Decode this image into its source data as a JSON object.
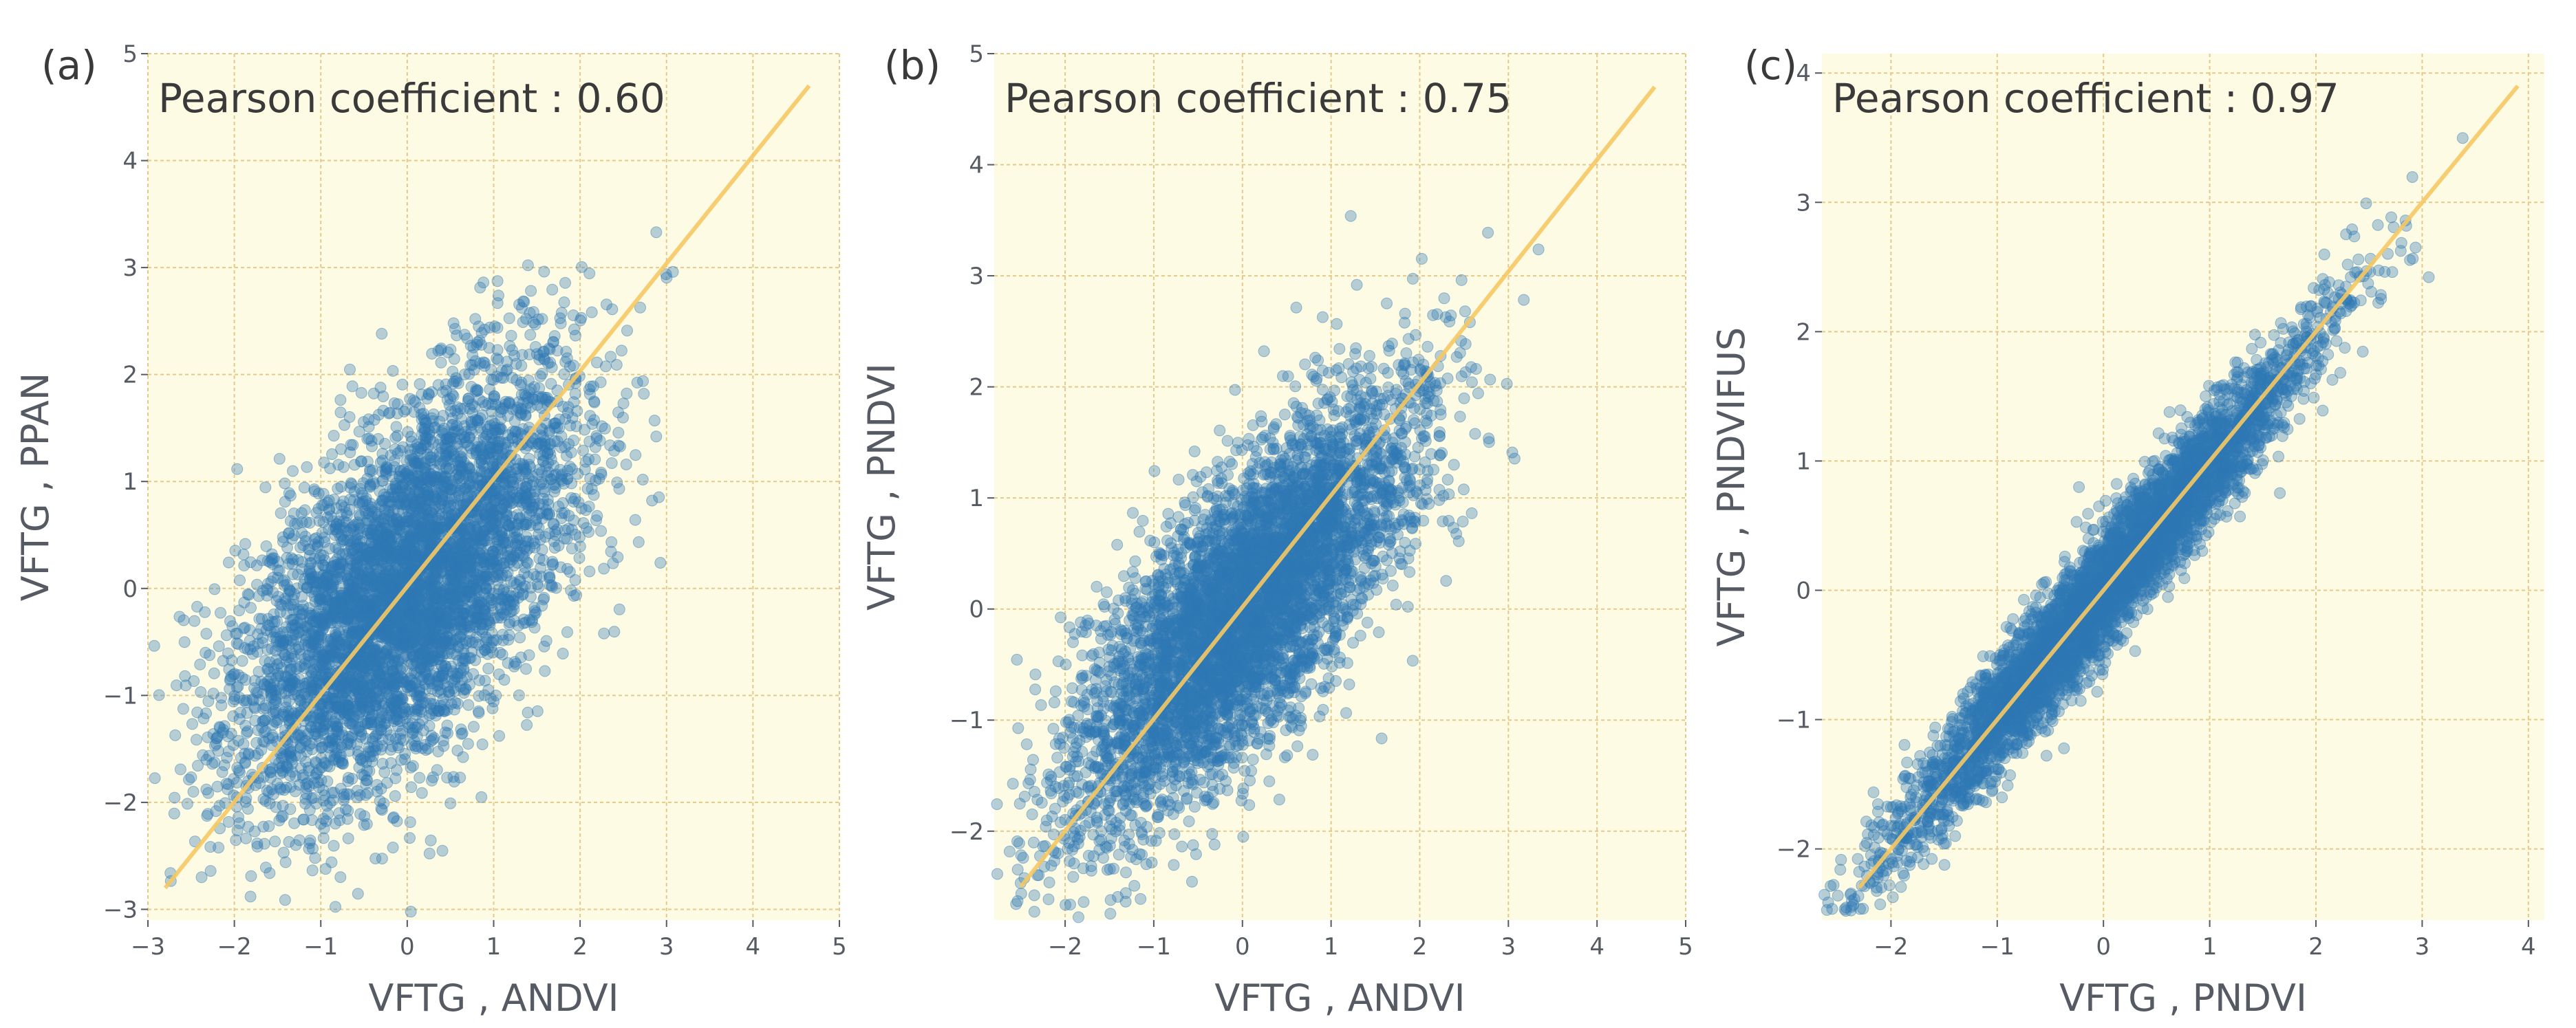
{
  "figure": {
    "colors": {
      "background": "#fdfbe4",
      "grid": "#e6c98a",
      "points": "#2e78b4",
      "fit_line": "#f5c863",
      "text": "#3a3a3a",
      "tick_text": "#555a63"
    }
  },
  "chart_data": [
    {
      "type": "scatter",
      "panel_label": "(a)",
      "title": "Pearson coefficient : 0.60",
      "pearson": 0.6,
      "xlabel": "VFTG , ANDVI",
      "ylabel": "VFTG , PPAN",
      "xlim": [
        -3.0,
        5.0
      ],
      "ylim": [
        -3.1,
        5.0
      ],
      "xticks": [
        -3,
        -2,
        -1,
        0,
        1,
        2,
        3,
        4,
        5
      ],
      "yticks": [
        -3,
        -2,
        -1,
        0,
        1,
        2,
        3,
        4,
        5
      ],
      "grid": true,
      "n_points": 5200,
      "point_cloud": {
        "x_mean": 0.0,
        "x_sd": 0.98,
        "y_mean": 0.0,
        "y_sd": 0.98,
        "correlation": 0.6
      },
      "fit_line": {
        "x": [
          -2.8,
          4.65
        ],
        "y": [
          -2.8,
          4.7
        ]
      }
    },
    {
      "type": "scatter",
      "panel_label": "(b)",
      "title": "Pearson coefficient : 0.75",
      "pearson": 0.75,
      "xlabel": "VFTG , ANDVI",
      "ylabel": "VFTG , PNDVI",
      "xlim": [
        -2.8,
        5.0
      ],
      "ylim": [
        -2.8,
        5.0
      ],
      "xticks": [
        -2,
        -1,
        0,
        1,
        2,
        3,
        4,
        5
      ],
      "yticks": [
        -2,
        -1,
        0,
        1,
        2,
        3,
        4,
        5
      ],
      "grid": true,
      "n_points": 5200,
      "point_cloud": {
        "x_mean": 0.0,
        "x_sd": 0.95,
        "y_mean": 0.0,
        "y_sd": 0.95,
        "correlation": 0.75
      },
      "fit_line": {
        "x": [
          -2.5,
          4.65
        ],
        "y": [
          -2.5,
          4.7
        ]
      }
    },
    {
      "type": "scatter",
      "panel_label": "(c)",
      "title": "Pearson coefficient : 0.97",
      "pearson": 0.97,
      "xlabel": "VFTG , PNDVI",
      "ylabel": "VFTG , PNDVIFUS",
      "xlim": [
        -2.65,
        4.15
      ],
      "ylim": [
        -2.55,
        4.15
      ],
      "xticks": [
        -2,
        -1,
        0,
        1,
        2,
        3,
        4
      ],
      "yticks": [
        -2,
        -1,
        0,
        1,
        2,
        3,
        4
      ],
      "grid": true,
      "n_points": 5200,
      "point_cloud": {
        "x_mean": 0.0,
        "x_sd": 0.95,
        "y_mean": 0.0,
        "y_sd": 0.95,
        "correlation": 0.97
      },
      "fit_line": {
        "x": [
          -2.3,
          3.9
        ],
        "y": [
          -2.3,
          3.9
        ]
      }
    }
  ]
}
